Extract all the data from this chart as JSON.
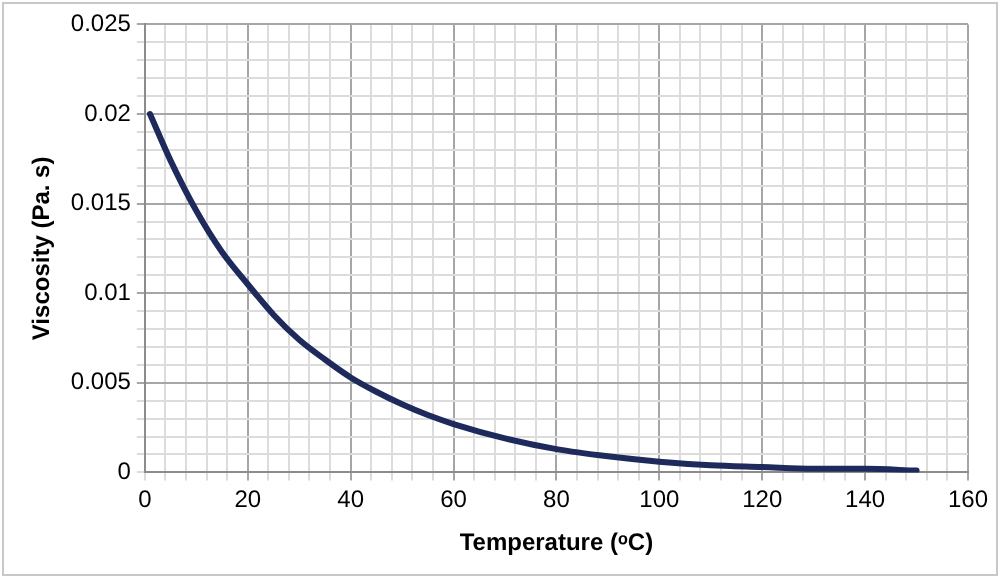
{
  "chart_data": {
    "type": "line",
    "xlabel": "Temperature (ᵒC)",
    "ylabel": "Viscosity (Pa. s)",
    "x": [
      1,
      5,
      10,
      15,
      20,
      25,
      30,
      35,
      40,
      45,
      50,
      55,
      60,
      70,
      80,
      90,
      100,
      110,
      120,
      130,
      140,
      150
    ],
    "series": [
      {
        "color": "#1f2a5c",
        "values": [
          0.02,
          0.0174,
          0.0146,
          0.0123,
          0.0105,
          0.0088,
          0.0074,
          0.0063,
          0.0053,
          0.0045,
          0.0038,
          0.0032,
          0.0027,
          0.0019,
          0.0013,
          0.0009,
          0.0006,
          0.0004,
          0.0003,
          0.0002,
          0.0002,
          0.0001
        ]
      }
    ],
    "xlim": [
      0,
      160
    ],
    "xticks": [
      0,
      {
        "value": 4,
        "label": null
      },
      {
        "value": 8,
        "label": null
      },
      {
        "value": 12,
        "label": null
      },
      {
        "value": 16,
        "label": null
      },
      20,
      {
        "value": 24,
        "label": null
      },
      {
        "value": 28,
        "label": null
      },
      {
        "value": 32,
        "label": null
      },
      {
        "value": 36,
        "label": null
      },
      40,
      {
        "value": 44,
        "label": null
      },
      {
        "value": 48,
        "label": null
      },
      {
        "value": 52,
        "label": null
      },
      {
        "value": 56,
        "label": null
      },
      60,
      {
        "value": 64,
        "label": null
      },
      {
        "value": 68,
        "label": null
      },
      {
        "value": 72,
        "label": null
      },
      {
        "value": 76,
        "label": null
      },
      80,
      {
        "value": 84,
        "label": null
      },
      {
        "value": 88,
        "label": null
      },
      {
        "value": 92,
        "label": null
      },
      {
        "value": 96,
        "label": null
      },
      100,
      {
        "value": 104,
        "label": null
      },
      {
        "value": 108,
        "label": null
      },
      {
        "value": 112,
        "label": null
      },
      {
        "value": 116,
        "label": null
      },
      120,
      {
        "value": 124,
        "label": null
      },
      {
        "value": 128,
        "label": null
      },
      {
        "value": 132,
        "label": null
      },
      {
        "value": 136,
        "label": null
      },
      140,
      {
        "value": 144,
        "label": null
      },
      {
        "value": 148,
        "label": null
      },
      {
        "value": 152,
        "label": null
      },
      {
        "value": 156,
        "label": null
      },
      160
    ],
    "ylim": [
      0,
      0.025
    ],
    "yticks": [
      0,
      {
        "value": 0.001,
        "label": null
      },
      {
        "value": 0.002,
        "label": null
      },
      {
        "value": 0.003,
        "label": null
      },
      {
        "value": 0.004,
        "label": null
      },
      0.005,
      {
        "value": 0.006,
        "label": null
      },
      {
        "value": 0.007,
        "label": null
      },
      {
        "value": 0.008,
        "label": null
      },
      {
        "value": 0.009,
        "label": null
      },
      0.01,
      {
        "value": 0.011,
        "label": null
      },
      {
        "value": 0.012,
        "label": null
      },
      {
        "value": 0.013,
        "label": null
      },
      {
        "value": 0.014,
        "label": null
      },
      0.015,
      {
        "value": 0.016,
        "label": null
      },
      {
        "value": 0.017,
        "label": null
      },
      {
        "value": 0.018,
        "label": null
      },
      {
        "value": 0.019,
        "label": null
      },
      0.02,
      {
        "value": 0.021,
        "label": null
      },
      {
        "value": 0.022,
        "label": null
      },
      {
        "value": 0.023,
        "label": null
      },
      {
        "value": 0.024,
        "label": null
      },
      0.025
    ],
    "grid": true,
    "legend": false,
    "marker": "none",
    "line_style": "solid"
  }
}
